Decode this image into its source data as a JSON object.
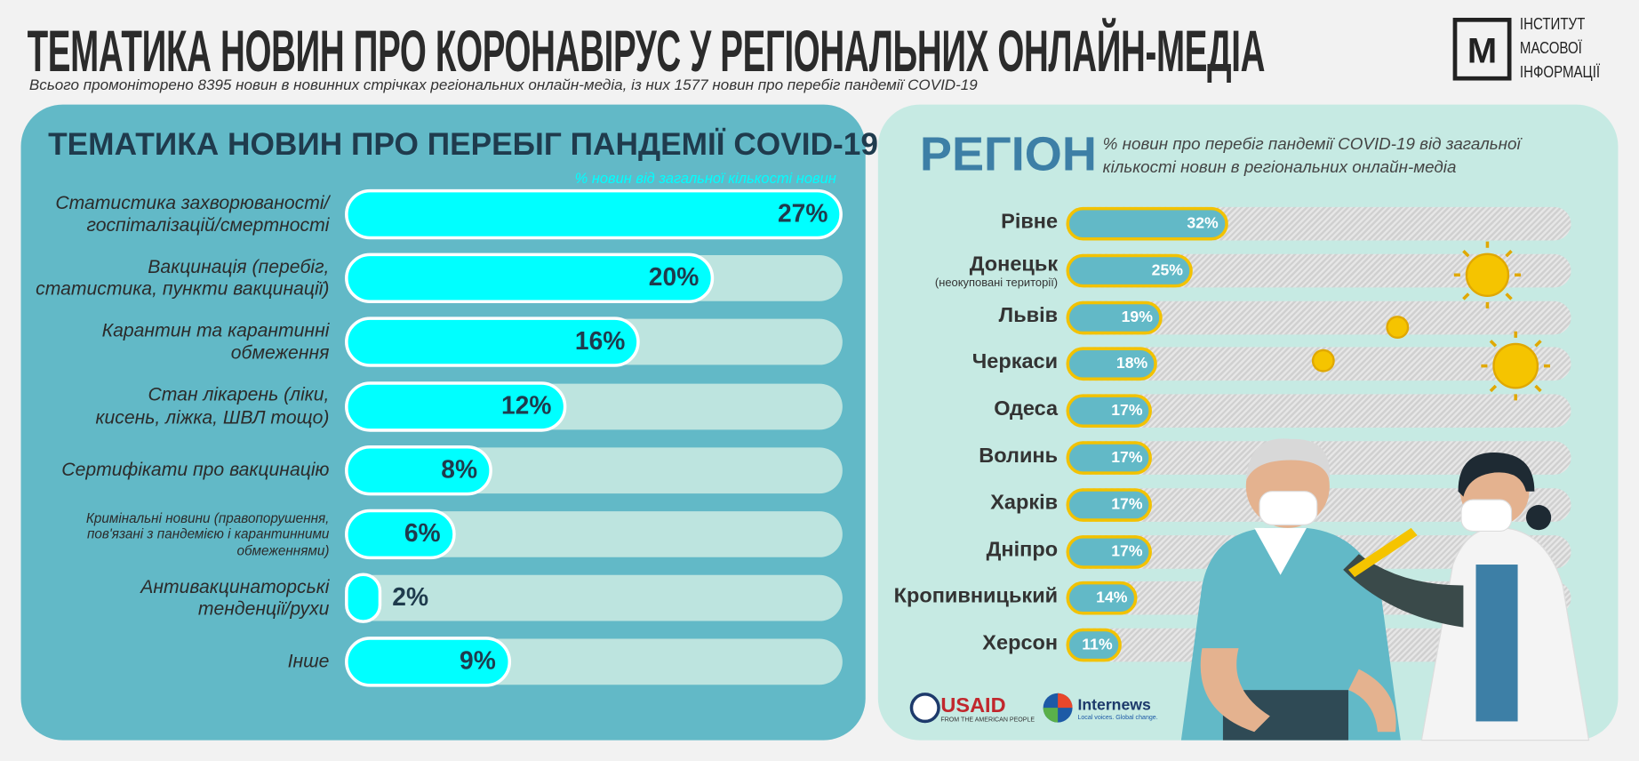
{
  "title": "ТЕМАТИКА НОВИН ПРО КОРОНАВІРУС У РЕГІОНАЛЬНИХ ОНЛАЙН-МЕДІА",
  "subtitle": "Всього промоніторено 8395 новин в новинних стрічках регіональних онлайн-медіа, із них 1577 новин про перебіг пандемії COVID-19",
  "logo": {
    "mark": "М",
    "lines": [
      "ІНСТИТУТ",
      "МАСОВОЇ",
      "ІНФОРМАЦІЇ"
    ]
  },
  "sponsors": [
    {
      "name": "USAID",
      "tagline": "FROM THE AMERICAN PEOPLE"
    },
    {
      "name": "Internews",
      "tagline": "Local voices. Global change."
    }
  ],
  "chart_data": [
    {
      "type": "bar",
      "title": "ТЕМАТИКА НОВИН ПРО ПЕРЕБІГ ПАНДЕМІЇ COVID-19",
      "axis_label": "% новин від загальної кількості новин",
      "categories": [
        "Статистика захворюваності/\nгоспіталізацій/смертності",
        "Вакцинація (перебіг,\nстатистика, пункти вакцинації)",
        "Карантин та карантинні\nобмеження",
        "Стан лікарень (ліки,\nкисень, ліжка, ШВЛ тощо)",
        "Сертифікати про вакцинацію",
        "Кримінальні новини (правопорушення,\nпов'язані з пандемією і карантинними\nобмеженнями)",
        "Антивакцинаторські\nтенденції/рухи",
        "Інше"
      ],
      "values": [
        27,
        20,
        16,
        12,
        8,
        6,
        2,
        9
      ],
      "value_labels": [
        "27%",
        "20%",
        "16%",
        "12%",
        "8%",
        "6%",
        "2%",
        "9%"
      ],
      "color": "#00ffff"
    },
    {
      "type": "bar",
      "title": "РЕГІОН",
      "subtitle": "% новин про перебіг пандемії COVID-19 від загальної\nкількості новин в регіональних онлайн-медіа",
      "categories": [
        "Рівне",
        "Донецьк",
        "Львів",
        "Черкаси",
        "Одеса",
        "Волинь",
        "Харків",
        "Дніпро",
        "Кропивницький",
        "Херсон"
      ],
      "category_notes": [
        null,
        "(неокуповані території)",
        null,
        null,
        null,
        null,
        null,
        null,
        null,
        null
      ],
      "values": [
        32,
        25,
        19,
        18,
        17,
        17,
        17,
        17,
        14,
        11
      ],
      "value_labels": [
        "32%",
        "25%",
        "19%",
        "18%",
        "17%",
        "17%",
        "17%",
        "17%",
        "14%",
        "11%"
      ],
      "color": "#62b9c7",
      "xlim": [
        0,
        100
      ]
    }
  ]
}
